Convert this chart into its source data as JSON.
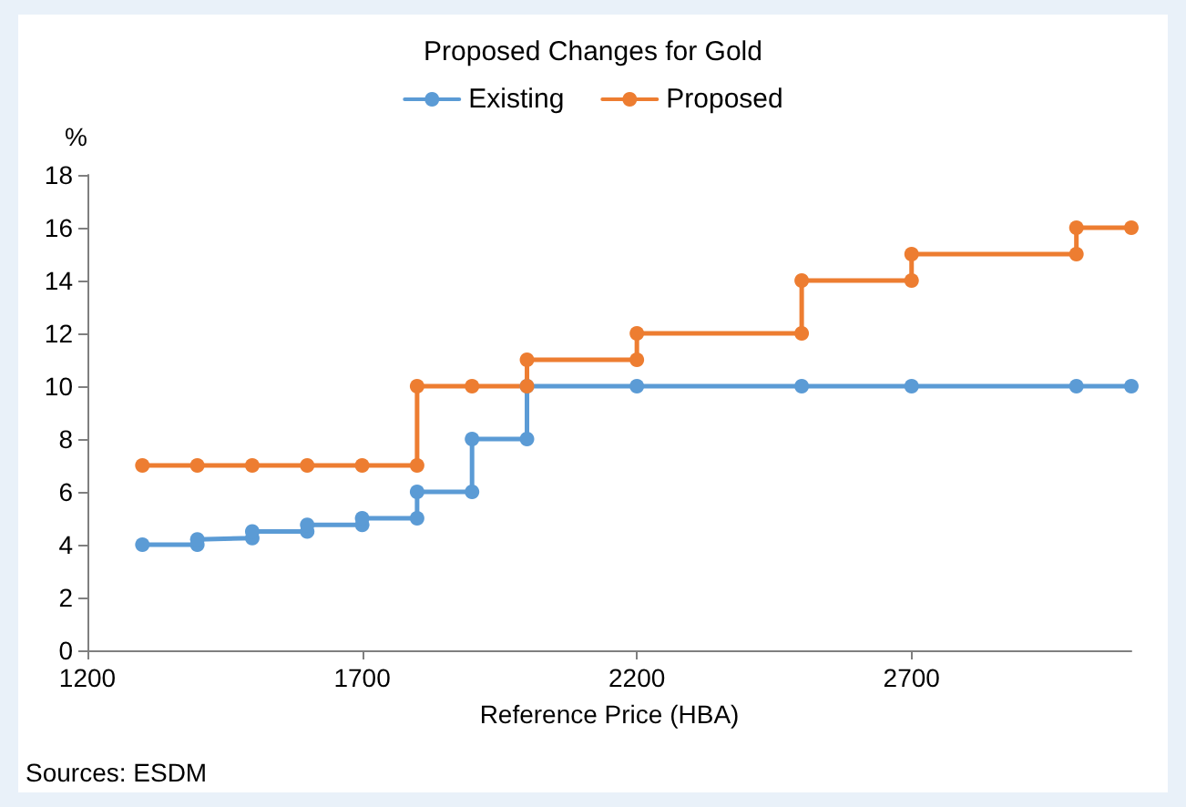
{
  "chart_data": {
    "type": "line",
    "title": "Proposed Changes for Gold",
    "xlabel": "Reference Price (HBA)",
    "ylabel": "%",
    "annotations": [
      "Sources: ESDM"
    ],
    "series": [
      {
        "name": "Existing",
        "color": "#5b9bd5",
        "x": [
          1300,
          1400,
          1400,
          1500,
          1500,
          1600,
          1600,
          1700,
          1700,
          1800,
          1800,
          1900,
          1900,
          2000,
          2000,
          2200,
          2500,
          2700,
          3000,
          3100
        ],
        "values": [
          4,
          4,
          4.2,
          4.25,
          4.5,
          4.5,
          4.75,
          4.75,
          5,
          5,
          6,
          6,
          8,
          8,
          10,
          10,
          10,
          10,
          10,
          10
        ]
      },
      {
        "name": "Proposed",
        "color": "#ed7d31",
        "x": [
          1300,
          1400,
          1500,
          1600,
          1700,
          1800,
          1800,
          1900,
          2000,
          2000,
          2200,
          2200,
          2500,
          2500,
          2700,
          2700,
          3000,
          3000,
          3100
        ],
        "values": [
          7,
          7,
          7,
          7,
          7,
          7,
          10,
          10,
          10,
          11,
          11,
          12,
          12,
          14,
          14,
          15,
          15,
          16,
          16
        ]
      }
    ],
    "xlim": [
      1200,
      3100
    ],
    "xticks": [
      1200,
      1700,
      2200,
      2700
    ],
    "ylim": [
      0,
      18
    ],
    "yticks": [
      0,
      2,
      4,
      6,
      8,
      10,
      12,
      14,
      16,
      18
    ],
    "grid": false,
    "legend": "top",
    "marker": "circle",
    "line_style": "solid"
  }
}
